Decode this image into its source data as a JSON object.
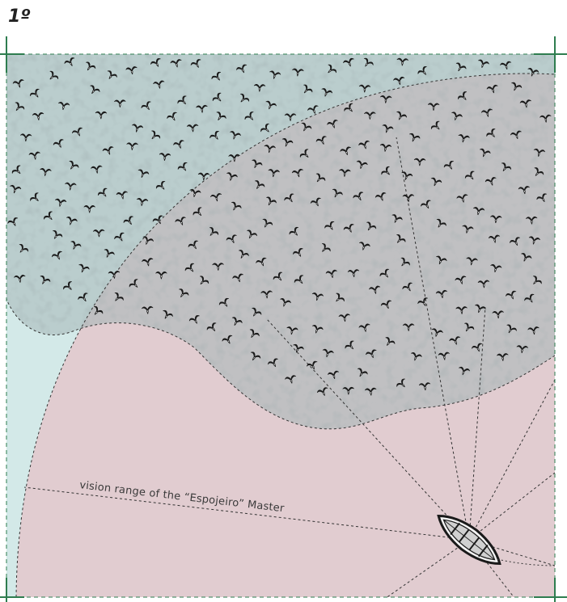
{
  "page_number": "1º",
  "vision_range_label": "vision range of the “Espojeiro” Master",
  "colors": {
    "sea": "#cfe6e5",
    "vision_range": "#e8c4c9",
    "shoal_shade": "#a9b8b8",
    "frame": "#2e7d4f",
    "bird": "#1a1a1a"
  },
  "icons": {
    "bird": "seagull-icon",
    "boat": "rowboat-icon"
  }
}
